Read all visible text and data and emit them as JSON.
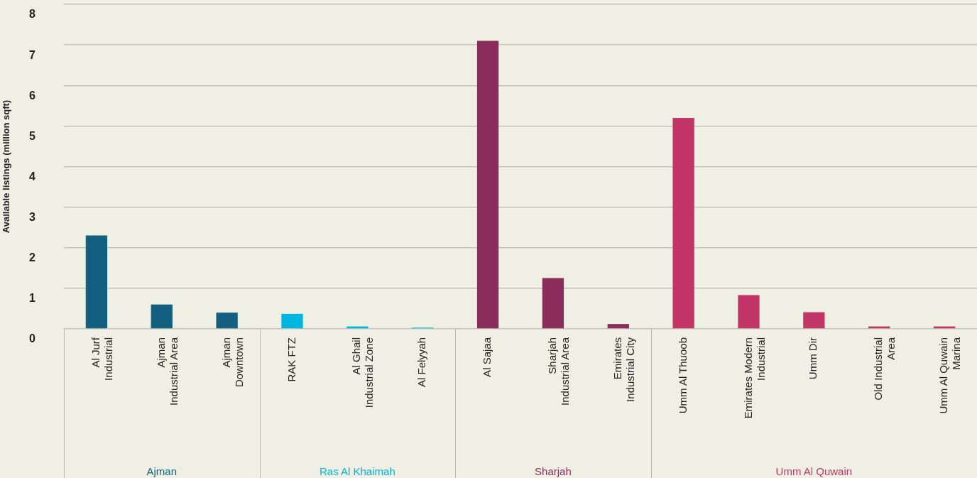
{
  "chart_data": {
    "type": "bar",
    "ylabel": "Available listings (million sqft)",
    "categories": [
      "Al Jurf Industrial",
      "Ajman Industrial Area",
      "Ajman Downtown",
      "RAK FTZ",
      "Al Ghail Industrial Zone",
      "Al Felyyah",
      "Al Sajaa",
      "Sharjah Industrial Area",
      "Emirates Industrial City",
      "Umm Al Thuoob",
      "Emirates Modern Industrial",
      "Umm Dir",
      "Old Industrial Area",
      "Umm Al Quwain Marina"
    ],
    "series": [
      {
        "name": "Ajman",
        "color": "#135f7f",
        "values": [
          2.3,
          0.6,
          0.4,
          null,
          null,
          null,
          null,
          null,
          null,
          null,
          null,
          null,
          null,
          null
        ]
      },
      {
        "name": "Ras Al Khaimah",
        "color": "#00b5de",
        "values": [
          null,
          null,
          null,
          0.37,
          0.06,
          0.03,
          null,
          null,
          null,
          null,
          null,
          null,
          null,
          null
        ]
      },
      {
        "name": "Sharjah",
        "color": "#8b2d5b",
        "values": [
          null,
          null,
          null,
          null,
          null,
          null,
          7.1,
          1.25,
          0.12,
          null,
          null,
          null,
          null,
          null
        ]
      },
      {
        "name": "Umm Al Quwain",
        "color": "#c13567",
        "values": [
          null,
          null,
          null,
          null,
          null,
          null,
          null,
          null,
          null,
          5.2,
          0.83,
          0.41,
          0.06,
          0.06
        ]
      }
    ],
    "ylim": [
      0,
      8
    ],
    "yticks": [
      0,
      1,
      2,
      3,
      4,
      5,
      6,
      7,
      8
    ],
    "grid": "y",
    "legend": false
  }
}
